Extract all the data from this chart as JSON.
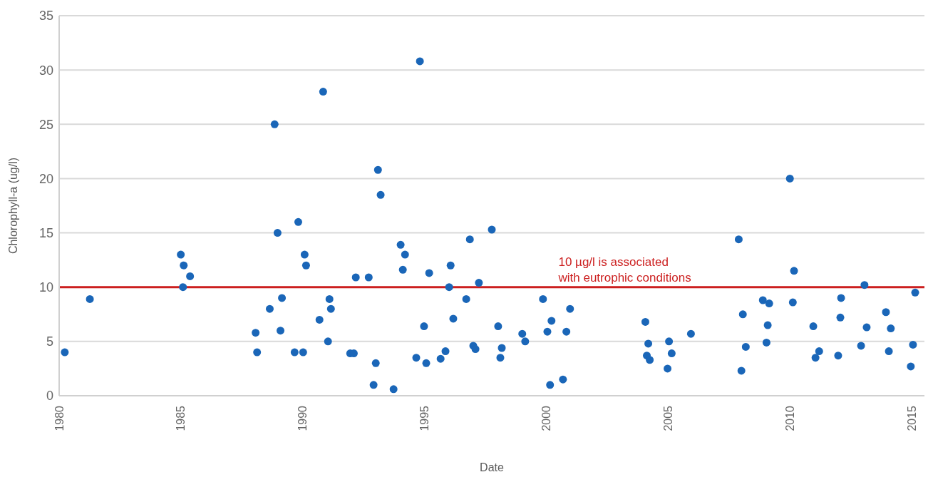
{
  "chart_data": {
    "type": "scatter",
    "xlabel": "Date",
    "ylabel": "Chlorophyll-a (ug/l)",
    "xlim": [
      1980,
      2015.5
    ],
    "xticks": [
      1980,
      1985,
      1990,
      1995,
      2000,
      2005,
      2010,
      2015
    ],
    "ylim": [
      0,
      35
    ],
    "yticks": [
      0,
      5,
      10,
      15,
      20,
      25,
      30,
      35
    ],
    "grid": "y",
    "marker": "circle",
    "ref_lines": [
      {
        "axis": "y",
        "value": 10,
        "label": "10 µg/l is associated with eutrophic conditions",
        "color": "#cc1f1f"
      }
    ],
    "series": [
      {
        "color": "#1a66b8",
        "x": [
          1980.23,
          1981.26,
          1984.99,
          1985.11,
          1985.37,
          1985.08,
          1988.06,
          1988.12,
          1988.64,
          1988.84,
          1988.96,
          1989.08,
          1989.14,
          1989.66,
          1989.81,
          1990.01,
          1990.07,
          1990.13,
          1990.68,
          1990.83,
          1991.03,
          1991.09,
          1991.15,
          1991.94,
          1992.09,
          1992.17,
          1992.7,
          1992.9,
          1992.99,
          1993.08,
          1993.19,
          1993.72,
          1994.01,
          1994.1,
          1994.19,
          1994.65,
          1994.8,
          1994.97,
          1995.06,
          1995.18,
          1995.65,
          1995.85,
          1996.0,
          1996.06,
          1996.17,
          1996.7,
          1996.85,
          1996.99,
          1997.08,
          1997.22,
          1997.75,
          1998.01,
          1998.1,
          1998.16,
          1999.0,
          1999.12,
          1999.85,
          2000.03,
          2000.14,
          2000.2,
          2000.67,
          2000.81,
          2000.96,
          2004.05,
          2004.11,
          2004.17,
          2004.23,
          2004.96,
          2005.02,
          2005.13,
          2005.92,
          2007.88,
          2007.99,
          2008.05,
          2008.17,
          2008.87,
          2009.02,
          2009.07,
          2009.13,
          2009.98,
          2010.1,
          2010.15,
          2010.94,
          2011.03,
          2011.18,
          2011.96,
          2012.05,
          2012.08,
          2012.9,
          2013.04,
          2013.13,
          2013.92,
          2014.04,
          2014.12,
          2014.94,
          2015.03,
          2015.12
        ],
        "values": [
          4,
          8.9,
          13,
          12,
          11,
          10,
          5.8,
          4,
          8,
          25,
          15,
          6,
          9,
          4,
          16,
          4,
          13,
          12,
          7,
          28,
          5,
          8.9,
          8,
          3.9,
          3.9,
          10.9,
          10.9,
          1,
          3,
          20.8,
          18.5,
          0.6,
          13.9,
          11.6,
          13,
          3.5,
          30.8,
          6.4,
          3,
          11.3,
          3.4,
          4.1,
          10,
          12,
          7.1,
          8.9,
          14.4,
          4.6,
          4.3,
          10.4,
          15.3,
          6.4,
          3.5,
          4.4,
          5.7,
          5,
          8.9,
          5.9,
          1,
          6.9,
          1.5,
          5.9,
          8,
          6.8,
          3.7,
          4.8,
          3.3,
          2.5,
          5,
          3.9,
          5.7,
          14.4,
          2.3,
          7.5,
          4.5,
          8.8,
          4.9,
          6.5,
          8.5,
          20,
          8.6,
          11.5,
          6.4,
          3.5,
          4.1,
          3.7,
          7.2,
          9,
          4.6,
          10.2,
          6.3,
          7.7,
          4.1,
          6.2,
          2.7,
          4.7,
          9.5
        ]
      }
    ]
  }
}
